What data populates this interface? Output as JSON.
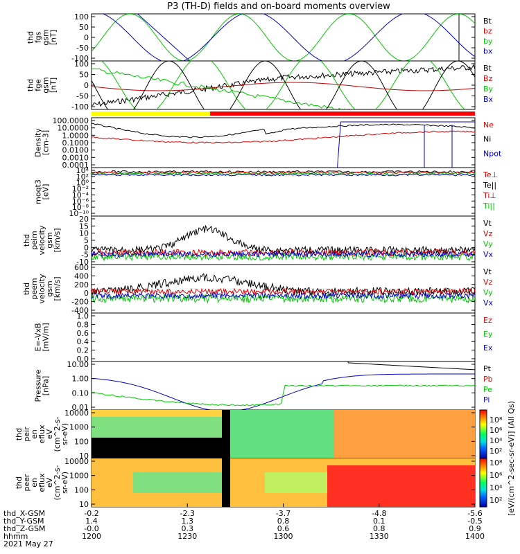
{
  "title": "P3 (TH-D) fields and on-board moments overview",
  "chart_data": [
    {
      "type": "line",
      "ylabel": [
        "thd",
        "fgs",
        "gsm",
        "[nT]"
      ],
      "yticks": [
        "100",
        "50",
        "0",
        "-50",
        "-100"
      ],
      "ylim": [
        -100,
        100
      ],
      "legend": [
        {
          "label": "Bt",
          "color": "#000000"
        },
        {
          "label": "bz",
          "color": "#e00000"
        },
        {
          "label": "by",
          "color": "#00c800"
        },
        {
          "label": "bx",
          "color": "#0000c8"
        }
      ]
    },
    {
      "type": "line",
      "ylabel": [
        "thd",
        "fge",
        "gsm",
        "[nT]"
      ],
      "yticks": [
        "100",
        "50",
        "0",
        "-50",
        "-100"
      ],
      "ylim": [
        -120,
        100
      ],
      "legend": [
        {
          "label": "Bt",
          "color": "#000000"
        },
        {
          "label": "Bz",
          "color": "#e00000"
        },
        {
          "label": "By",
          "color": "#00c800"
        },
        {
          "label": "Bx",
          "color": "#0000c8"
        }
      ]
    },
    {
      "type": "line",
      "ylabel": [
        "Density",
        "[cm-3]"
      ],
      "yscale": "log",
      "yticks": [
        "100.0000",
        "10.0000",
        "1.0000",
        "0.1000",
        "0.0100",
        "0.0010",
        "0.0001"
      ],
      "legend": [
        {
          "label": "Ne",
          "color": "#e00000"
        },
        {
          "label": "Ni",
          "color": "#000000"
        },
        {
          "label": "Npot",
          "color": "#0000c8"
        }
      ]
    },
    {
      "type": "line",
      "ylabel": [
        "moqt3",
        "[eV]"
      ],
      "yscale": "log",
      "yticks": [
        "10⁴",
        "10²",
        "10⁰",
        "10⁻²",
        "10⁻⁴",
        "10⁻⁶",
        "10⁻⁸",
        "10⁻¹⁰"
      ],
      "legend": [
        {
          "label": "Te⊥",
          "color": "#e00000"
        },
        {
          "label": "Te||",
          "color": "#000000"
        },
        {
          "label": "Ti⊥",
          "color": "#c80000"
        },
        {
          "label": "Ti||",
          "color": "#00c800"
        }
      ]
    },
    {
      "type": "line",
      "ylabel": [
        "thd",
        "peim",
        "velocity",
        "gsm",
        "[km/s]"
      ],
      "yticks": [
        "20",
        "15",
        "10",
        "5",
        "0",
        "-5",
        "-10"
      ],
      "ylim": [
        -10,
        20
      ],
      "legend": [
        {
          "label": "Vt",
          "color": "#000000"
        },
        {
          "label": "Vz",
          "color": "#e00000"
        },
        {
          "label": "Vy",
          "color": "#00c800"
        },
        {
          "label": "Vx",
          "color": "#0000c8"
        }
      ]
    },
    {
      "type": "line",
      "ylabel": [
        "thd",
        "peem",
        "velocity",
        "gsm",
        "[km/s]"
      ],
      "yticks": [
        "600",
        "400",
        "200",
        "0",
        "-200",
        "-400"
      ],
      "ylim": [
        -400,
        600
      ],
      "legend": [
        {
          "label": "Vt",
          "color": "#000000"
        },
        {
          "label": "Vz",
          "color": "#e00000"
        },
        {
          "label": "Vy",
          "color": "#00c800"
        },
        {
          "label": "Vx",
          "color": "#0000c8"
        }
      ]
    },
    {
      "type": "line",
      "ylabel": [
        "E=-VxB",
        "[mV/m]"
      ],
      "yticks": [
        "1.0",
        "0.8",
        "0.6",
        "0.4",
        "0.2",
        "0.0"
      ],
      "ylim": [
        0,
        1
      ],
      "legend": [
        {
          "label": "Ez",
          "color": "#e00000"
        },
        {
          "label": "Ey",
          "color": "#00c800"
        },
        {
          "label": "Ex",
          "color": "#0000c8"
        }
      ]
    },
    {
      "type": "line",
      "ylabel": [
        "Pressure",
        "[nPa]"
      ],
      "yscale": "log",
      "yticks": [
        "10.00",
        "1.00",
        "0.10",
        "0.01"
      ],
      "legend": [
        {
          "label": "Pt",
          "color": "#000000"
        },
        {
          "label": "Pb",
          "color": "#e00000"
        },
        {
          "label": "Pe",
          "color": "#00c800"
        },
        {
          "label": "Pi",
          "color": "#0000c8"
        }
      ]
    },
    {
      "type": "heatmap",
      "ylabel": [
        "thd",
        "peir",
        "en",
        "eflux",
        "eV",
        "(cm^2-s-",
        "sr-eV)"
      ],
      "yscale": "log",
      "yticks": [
        "10000",
        "1000",
        "100",
        "10"
      ]
    },
    {
      "type": "heatmap",
      "ylabel": [
        "thd",
        "peer",
        "en",
        "eflux",
        "eV",
        "(cm^2-s-",
        "sr-eV)"
      ],
      "yscale": "log",
      "yticks": [
        "10000",
        "1000",
        "100",
        "10"
      ]
    }
  ],
  "colorbar": {
    "label": "[eV/(cm^2-sec-sr-eV)] (All Qs)",
    "ticks_top": [
      "10⁸",
      "10⁶",
      "10⁴",
      "10²"
    ],
    "ticks_bottom": [
      "10⁸",
      "10⁶",
      "10⁴",
      "10²"
    ]
  },
  "status_bar": {
    "segments": [
      {
        "from": 0.0,
        "to": 0.309,
        "color": "#ffff00"
      },
      {
        "from": 0.309,
        "to": 1.0,
        "color": "#ff0000"
      }
    ]
  },
  "x_axis": {
    "rows": [
      {
        "label": "thd_X-GSM",
        "values": [
          "-0.2",
          "-2.3",
          "-3.7",
          "-4.8",
          "-5.6"
        ]
      },
      {
        "label": "thd_Y-GSM",
        "values": [
          "1.4",
          "1.3",
          "0.8",
          "0.1",
          "-0.5"
        ]
      },
      {
        "label": "thd_Z-GSM",
        "values": [
          "-0.0",
          "0.3",
          "0.6",
          "0.8",
          "0.9"
        ]
      },
      {
        "label": "hhmm",
        "values": [
          "1200",
          "1230",
          "1300",
          "1330",
          "1400"
        ]
      }
    ],
    "date": "2021 May 27"
  }
}
